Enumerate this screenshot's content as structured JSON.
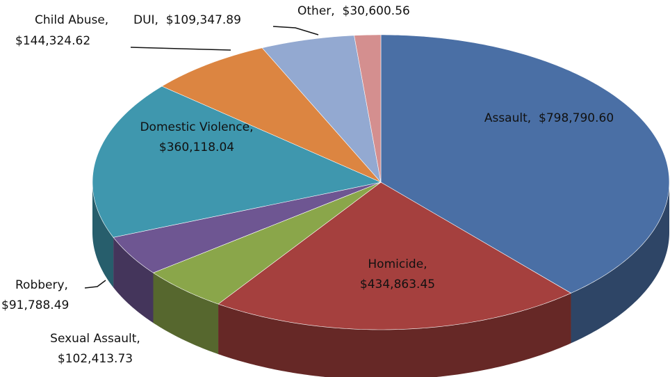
{
  "chart_data": {
    "type": "pie",
    "categories": [
      "Assault",
      "Homicide",
      "Sexual Assault",
      "Robbery",
      "Domestic Violence",
      "Child Abuse",
      "DUI",
      "Other"
    ],
    "values": [
      798790.6,
      434863.45,
      102413.73,
      91788.49,
      360118.04,
      144324.62,
      109347.89,
      30600.56
    ],
    "value_labels": [
      "$798,790.60",
      "$434,863.45",
      "$102,413.73",
      "$91,788.49",
      "$360,118.04",
      "$144,324.62",
      "$109,347.89",
      "$30,600.56"
    ],
    "colors": [
      "#4a6fa5",
      "#a5403e",
      "#8aa64a",
      "#6e5692",
      "#3f97ae",
      "#dc8541",
      "#93a9d1",
      "#d48f8f"
    ]
  }
}
